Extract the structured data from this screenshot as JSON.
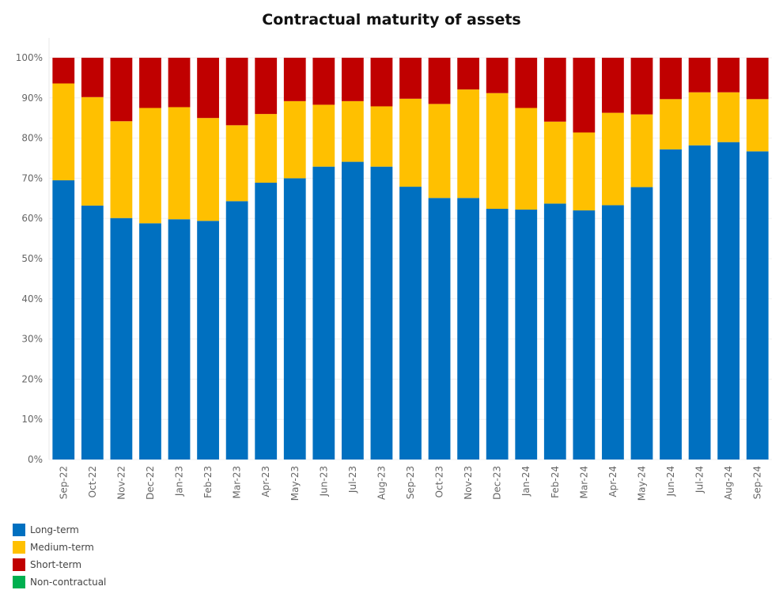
{
  "chart_data": {
    "type": "bar",
    "stacked": true,
    "title": "Contractual maturity of assets",
    "categories": [
      "Sep-22",
      "Oct-22",
      "Nov-22",
      "Dec-22",
      "Jan-23",
      "Feb-23",
      "Mar-23",
      "Apr-23",
      "May-23",
      "Jun-23",
      "Jul-23",
      "Aug-23",
      "Sep-23",
      "Oct-23",
      "Nov-23",
      "Dec-23",
      "Jan-24",
      "Feb-24",
      "Mar-24",
      "Apr-24",
      "May-24",
      "Jun-24",
      "Jul-24",
      "Aug-24",
      "Sep-24"
    ],
    "yticks": [
      "0%",
      "10%",
      "20%",
      "30%",
      "40%",
      "50%",
      "60%",
      "70%",
      "80%",
      "90%",
      "100%"
    ],
    "ylim": [
      0,
      100
    ],
    "grid": true,
    "legend_position": "bottom-left",
    "series": [
      {
        "name": "Long-term",
        "color": "#0070C0",
        "values": [
          69.5,
          63.2,
          60.1,
          58.8,
          59.8,
          59.4,
          64.3,
          68.9,
          70.0,
          72.9,
          74.1,
          72.9,
          67.9,
          65.1,
          65.1,
          62.4,
          62.2,
          63.7,
          62.0,
          63.3,
          67.8,
          77.2,
          78.2,
          79.0,
          76.7
        ]
      },
      {
        "name": "Medium-term",
        "color": "#FFC000",
        "values": [
          24.1,
          27.0,
          24.1,
          28.7,
          27.9,
          25.6,
          18.9,
          17.1,
          19.2,
          15.4,
          15.1,
          15.0,
          21.9,
          23.4,
          27.0,
          28.8,
          25.3,
          20.4,
          19.4,
          23.0,
          18.1,
          12.5,
          13.2,
          12.4,
          13.0
        ]
      },
      {
        "name": "Short-term",
        "color": "#C00000",
        "values": [
          6.4,
          9.8,
          15.8,
          12.5,
          12.3,
          15.0,
          16.8,
          14.0,
          10.8,
          11.7,
          10.8,
          12.1,
          10.2,
          11.5,
          7.9,
          8.8,
          12.5,
          15.9,
          18.6,
          13.7,
          14.1,
          10.3,
          8.6,
          8.6,
          10.3
        ]
      },
      {
        "name": "Non-contractual",
        "color": "#00B050",
        "values": [
          0,
          0,
          0,
          0,
          0,
          0,
          0,
          0,
          0,
          0,
          0,
          0,
          0,
          0,
          0,
          0,
          0,
          0,
          0,
          0,
          0,
          0,
          0,
          0,
          0
        ]
      }
    ]
  }
}
